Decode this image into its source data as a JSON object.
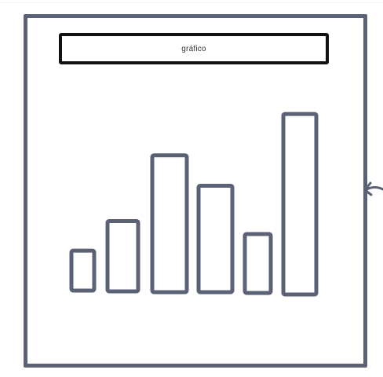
{
  "colors": {
    "frame": "#5b6275",
    "title_border": "#111111",
    "bar_stroke": "#5b6275"
  },
  "icons": {
    "edge_arrow": "arrow-left-icon"
  },
  "chart_title": "gráfico",
  "chart_data": {
    "type": "bar",
    "title": "gráfico",
    "values": [
      0.21,
      0.37,
      0.72,
      0.56,
      0.31,
      0.95
    ],
    "ylim": [
      0,
      1
    ],
    "grid": false
  }
}
